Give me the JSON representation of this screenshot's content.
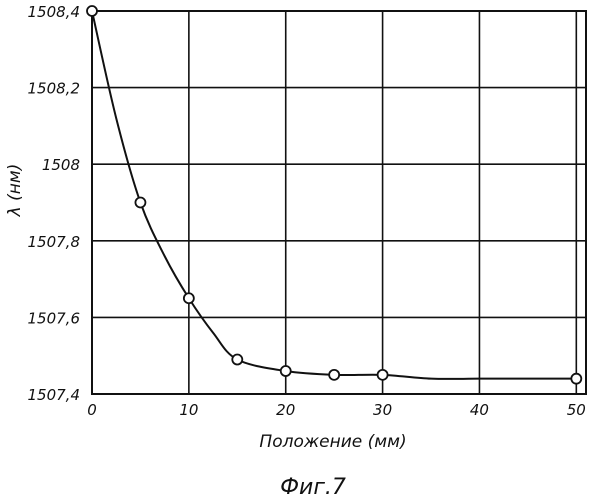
{
  "chart_data": {
    "type": "line",
    "xlabel": "Положение (мм)",
    "ylabel": "λ (нм)",
    "caption": "Фиг.7",
    "xlim": [
      0,
      51
    ],
    "ylim": [
      1507.4,
      1508.4
    ],
    "grid": true,
    "x_ticks": [
      0,
      10,
      20,
      30,
      40,
      50
    ],
    "x_tick_labels": [
      "0",
      "10",
      "20",
      "30",
      "40",
      "50"
    ],
    "y_ticks": [
      1507.4,
      1507.6,
      1507.8,
      1508.0,
      1508.2,
      1508.4
    ],
    "y_tick_labels": [
      "1507,4",
      "1507,6",
      "1507,8",
      "1508",
      "1508,2",
      "1508,4"
    ],
    "series": [
      {
        "x": [
          0,
          5,
          10,
          15,
          20,
          25,
          30,
          50
        ],
        "y": [
          1508.4,
          1507.9,
          1507.65,
          1507.49,
          1507.46,
          1507.45,
          1507.45,
          1507.44
        ]
      }
    ],
    "curve": {
      "x": [
        0,
        2.5,
        5,
        7.5,
        10,
        12.5,
        15,
        20,
        25,
        30,
        35,
        40,
        45,
        50
      ],
      "y": [
        1508.4,
        1508.12,
        1507.9,
        1507.76,
        1507.65,
        1507.56,
        1507.49,
        1507.46,
        1507.45,
        1507.45,
        1507.44,
        1507.44,
        1507.44,
        1507.44
      ]
    }
  }
}
